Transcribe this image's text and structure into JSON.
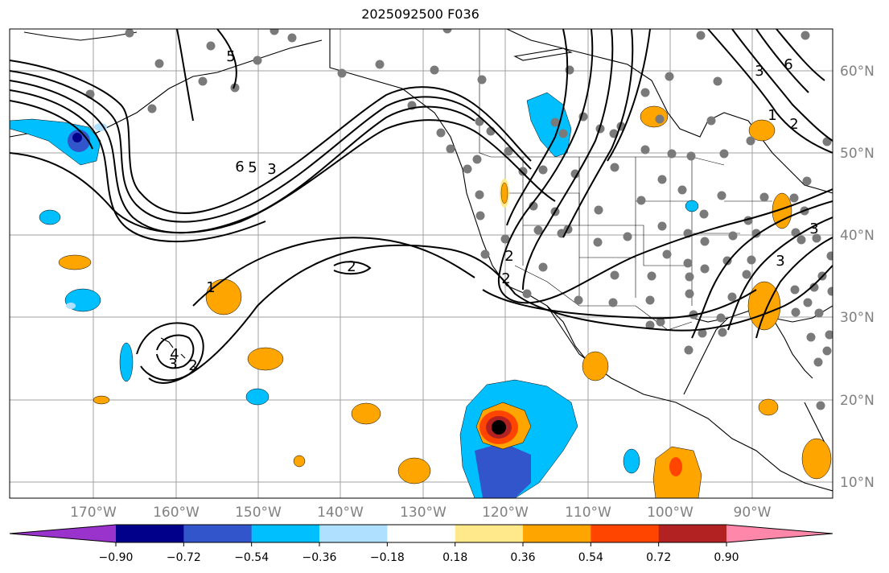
{
  "title": "2025092500 F036",
  "map": {
    "lon_labels": [
      "170°W",
      "160°W",
      "150°W",
      "140°W",
      "130°W",
      "120°W",
      "110°W",
      "100°W",
      "90°W"
    ],
    "lat_labels": [
      "60°N",
      "50°N",
      "40°N",
      "30°N",
      "20°N",
      "10°N"
    ],
    "contour_labels": [
      "5",
      "6",
      "5",
      "3",
      "2",
      "2",
      "2",
      "4",
      "3",
      "2",
      "1",
      "3",
      "6",
      "3",
      "1",
      "2",
      "3"
    ]
  },
  "colorbar": {
    "ticks": [
      "−0.90",
      "−0.72",
      "−0.54",
      "−0.36",
      "−0.18",
      "0.18",
      "0.36",
      "0.54",
      "0.72",
      "0.90"
    ],
    "colors": [
      "#9933cc",
      "#00008b",
      "#3355cc",
      "#00bfff",
      "#b0e0ff",
      "#ffffff",
      "#ffe98a",
      "#ffa500",
      "#ff4500",
      "#b22222",
      "#ff88aa"
    ]
  }
}
